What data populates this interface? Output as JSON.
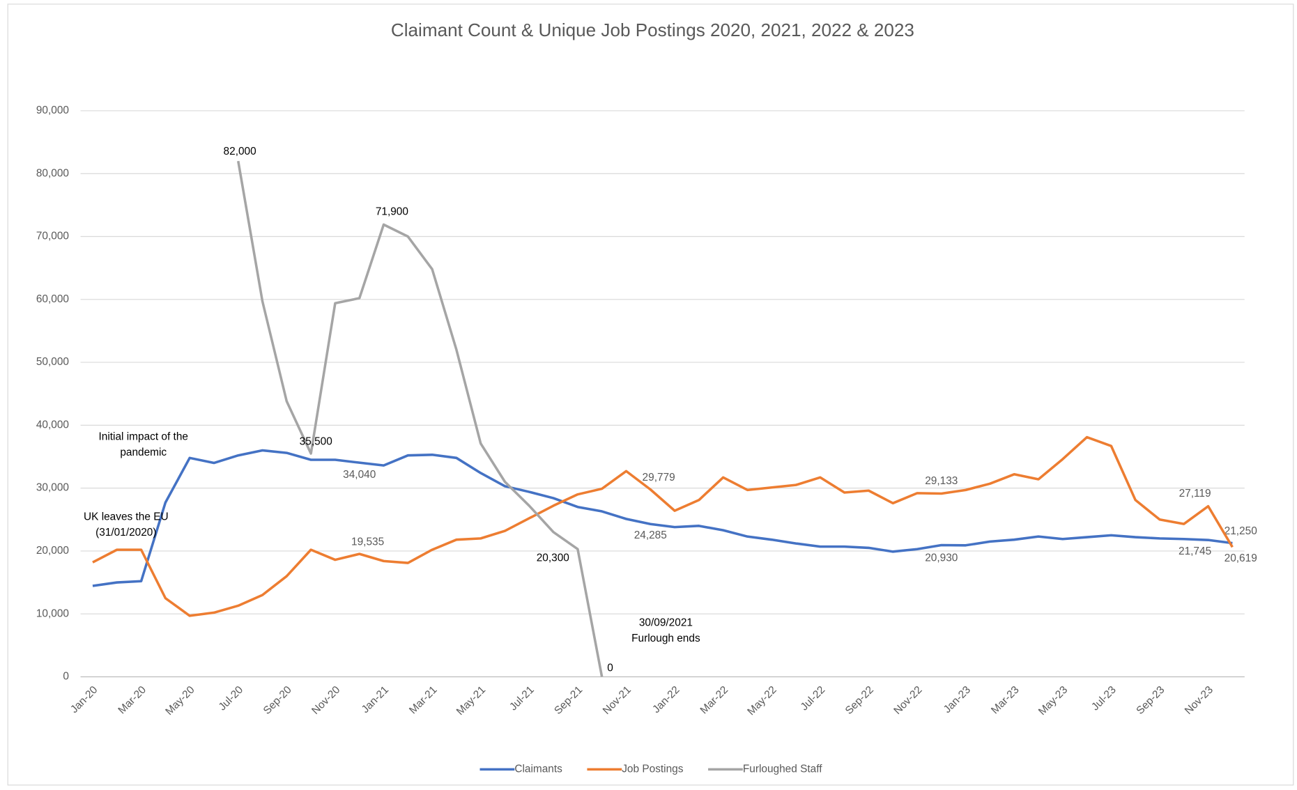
{
  "chart_data": {
    "type": "line",
    "title": "Claimant Count & Unique Job Postings 2020, 2021, 2022 & 2023",
    "categories": [
      "Jan-20",
      null,
      "Mar-20",
      null,
      "May-20",
      null,
      "Jul-20",
      null,
      "Sep-20",
      null,
      "Nov-20",
      null,
      "Jan-21",
      null,
      "Mar-21",
      null,
      "May-21",
      null,
      "Jul-21",
      null,
      "Sep-21",
      null,
      "Nov-21",
      null,
      "Jan-22",
      null,
      "Mar-22",
      null,
      "May-22",
      null,
      "Jul-22",
      null,
      "Sep-22",
      null,
      "Nov-22",
      null,
      "Jan-23",
      null,
      "Mar-23",
      null,
      "May-23",
      null,
      "Jul-23",
      null,
      "Sep-23",
      null,
      "Nov-23",
      null
    ],
    "series": [
      {
        "name": "Claimants",
        "color": "#4472c4",
        "values": [
          14450,
          15000,
          15200,
          27700,
          34800,
          34000,
          35200,
          36000,
          35600,
          34500,
          34500,
          34040,
          33600,
          35200,
          35300,
          34800,
          32400,
          30300,
          29400,
          28400,
          27000,
          26300,
          25100,
          24285,
          23800,
          24000,
          23300,
          22300,
          21800,
          21200,
          20700,
          20700,
          20500,
          19900,
          20300,
          20930,
          20900,
          21500,
          21800,
          22300,
          21900,
          22200,
          22500,
          22200,
          22000,
          21900,
          21745,
          21250
        ],
        "value_labels": [
          null,
          null,
          null,
          null,
          null,
          null,
          null,
          null,
          null,
          null,
          null,
          "34,040",
          null,
          null,
          null,
          null,
          null,
          null,
          null,
          null,
          null,
          null,
          null,
          "24,285",
          null,
          null,
          null,
          null,
          null,
          null,
          null,
          null,
          null,
          null,
          null,
          "20,930",
          null,
          null,
          null,
          null,
          null,
          null,
          null,
          null,
          null,
          null,
          "21,745",
          "21,250"
        ]
      },
      {
        "name": "Job Postings",
        "color": "#ed7d31",
        "values": [
          18200,
          20200,
          20200,
          12500,
          9700,
          10200,
          11300,
          13000,
          16000,
          20200,
          18600,
          19535,
          18400,
          18100,
          20200,
          21800,
          22000,
          23200,
          25200,
          27200,
          29000,
          29900,
          32700,
          29779,
          26400,
          28100,
          31700,
          29700,
          30100,
          30500,
          31700,
          29300,
          29600,
          27600,
          29200,
          29133,
          29700,
          30700,
          32200,
          31400,
          34600,
          38100,
          36700,
          28100,
          25000,
          24300,
          27119,
          20619
        ],
        "value_labels": [
          null,
          null,
          null,
          null,
          null,
          null,
          null,
          null,
          null,
          null,
          null,
          "19,535",
          null,
          null,
          null,
          null,
          null,
          null,
          null,
          null,
          null,
          null,
          null,
          "29,779",
          null,
          null,
          null,
          null,
          null,
          null,
          null,
          null,
          null,
          null,
          null,
          "29,133",
          null,
          null,
          null,
          null,
          null,
          null,
          null,
          null,
          null,
          null,
          "27,119",
          "20,619"
        ]
      },
      {
        "name": "Furloughed Staff",
        "color": "#a5a5a5",
        "values": [
          null,
          null,
          null,
          null,
          null,
          null,
          82000,
          59700,
          43800,
          35500,
          59400,
          60200,
          71900,
          70000,
          64800,
          52000,
          37100,
          31000,
          27200,
          23000,
          20300,
          0,
          null,
          null,
          null,
          null,
          null,
          null,
          null,
          null,
          null,
          null,
          null,
          null,
          null,
          null,
          null,
          null,
          null,
          null,
          null,
          null,
          null,
          null,
          null,
          null,
          null,
          null
        ],
        "value_labels": [
          null,
          null,
          null,
          null,
          null,
          null,
          "82,000",
          null,
          null,
          "35,500",
          null,
          null,
          "71,900",
          null,
          null,
          null,
          null,
          null,
          null,
          null,
          "20,300",
          "0",
          null,
          null,
          null,
          null,
          null,
          null,
          null,
          null,
          null,
          null,
          null,
          null,
          null,
          null,
          null,
          null,
          null,
          null,
          null,
          null,
          null,
          null,
          null,
          null,
          null,
          null
        ]
      }
    ],
    "ylim": [
      0,
      90000
    ],
    "yticks": [
      0,
      {
        "value": 10000,
        "label": "10,000"
      },
      {
        "value": 20000,
        "label": "20,000"
      },
      {
        "value": 30000,
        "label": "30,000"
      },
      {
        "value": 40000,
        "label": "40,000"
      },
      {
        "value": 50000,
        "label": "50,000"
      },
      {
        "value": 60000,
        "label": "60,000"
      },
      {
        "value": 70000,
        "label": "70,000"
      },
      {
        "value": 80000,
        "label": "80,000"
      },
      {
        "value": 90000,
        "label": "90,000"
      }
    ],
    "grid": true,
    "legend": "bottom",
    "annotations": [
      {
        "lines": [
          "Initial impact of the",
          "pandemic"
        ]
      },
      {
        "lines": [
          "UK leaves the EU",
          "(31/01/2020)"
        ]
      },
      {
        "lines": [
          "30/09/2021",
          "Furlough ends"
        ]
      }
    ]
  }
}
